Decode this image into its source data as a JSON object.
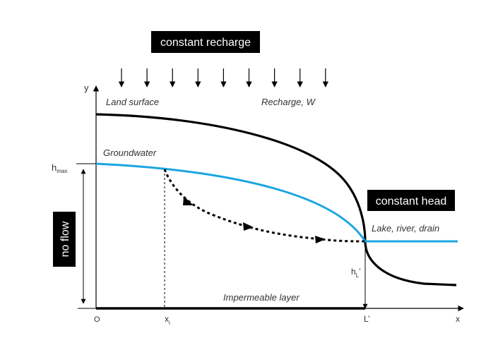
{
  "boxes": {
    "recharge": "constant recharge",
    "head": "constant head",
    "noflow": "no flow"
  },
  "labels": {
    "land_surface": "Land surface",
    "recharge_w": "Recharge, W",
    "groundwater": "Groundwater",
    "lake": "Lake, river, drain",
    "impermeable": "Impermeable layer"
  },
  "axes": {
    "y": "y",
    "x": "x",
    "origin": "O",
    "hmax_base": "h",
    "hmax_sub": "max",
    "xi_base": "x",
    "xi_sub": "i",
    "L_prime": "L’",
    "hL_base": "h",
    "hL_sub": "L",
    "hL_prime": "’"
  },
  "colors": {
    "groundwater": "#1aa6e0",
    "black": "#000000"
  },
  "recharge_arrow_count": 9
}
